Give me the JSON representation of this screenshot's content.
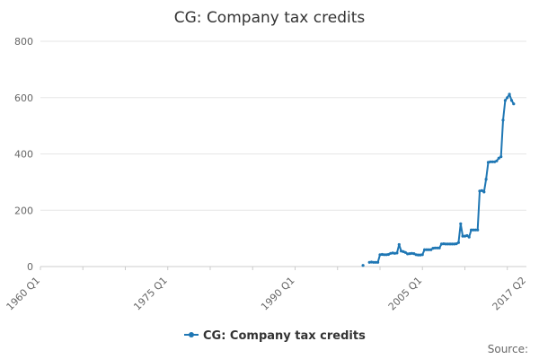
{
  "chart_data": {
    "type": "line",
    "title": "CG: Company tax credits",
    "xlabel": "",
    "ylabel": "",
    "x_tick_labels": [
      "1960 Q1",
      "1975 Q1",
      "1990 Q1",
      "2005 Q1",
      "2017 Q2"
    ],
    "x_tick_values": [
      1960.0,
      1975.0,
      1990.0,
      2005.0,
      2017.25
    ],
    "xlim": [
      1960.0,
      2017.25
    ],
    "ylim": [
      0,
      800
    ],
    "y_ticks": [
      0,
      200,
      400,
      600,
      800
    ],
    "grid": "horizontal",
    "legend": "bottom",
    "source_label": "Source:",
    "series": [
      {
        "name": "CG: Company tax credits",
        "color": "#1f77b4",
        "points": [
          [
            1998.0,
            4
          ],
          [
            1998.75,
            15
          ],
          [
            1999.0,
            16
          ],
          [
            1999.25,
            15
          ],
          [
            1999.5,
            15
          ],
          [
            1999.75,
            15
          ],
          [
            2000.0,
            42
          ],
          [
            2000.25,
            43
          ],
          [
            2000.5,
            42
          ],
          [
            2000.75,
            42
          ],
          [
            2001.0,
            43
          ],
          [
            2001.25,
            47
          ],
          [
            2001.5,
            48
          ],
          [
            2001.75,
            47
          ],
          [
            2002.0,
            48
          ],
          [
            2002.25,
            78
          ],
          [
            2002.5,
            55
          ],
          [
            2002.75,
            53
          ],
          [
            2003.0,
            50
          ],
          [
            2003.25,
            45
          ],
          [
            2003.5,
            46
          ],
          [
            2003.75,
            47
          ],
          [
            2004.0,
            46
          ],
          [
            2004.25,
            42
          ],
          [
            2004.5,
            41
          ],
          [
            2004.75,
            41
          ],
          [
            2005.0,
            42
          ],
          [
            2005.25,
            60
          ],
          [
            2005.5,
            60
          ],
          [
            2005.75,
            60
          ],
          [
            2006.0,
            60
          ],
          [
            2006.25,
            65
          ],
          [
            2006.5,
            66
          ],
          [
            2006.75,
            66
          ],
          [
            2007.0,
            66
          ],
          [
            2007.25,
            80
          ],
          [
            2007.5,
            81
          ],
          [
            2007.75,
            80
          ],
          [
            2008.0,
            80
          ],
          [
            2008.25,
            80
          ],
          [
            2008.5,
            80
          ],
          [
            2008.75,
            80
          ],
          [
            2009.0,
            81
          ],
          [
            2009.25,
            85
          ],
          [
            2009.5,
            152
          ],
          [
            2009.75,
            108
          ],
          [
            2010.0,
            108
          ],
          [
            2010.25,
            110
          ],
          [
            2010.5,
            105
          ],
          [
            2010.75,
            130
          ],
          [
            2011.0,
            130
          ],
          [
            2011.25,
            130
          ],
          [
            2011.5,
            130
          ],
          [
            2011.75,
            268
          ],
          [
            2012.0,
            270
          ],
          [
            2012.25,
            265
          ],
          [
            2012.5,
            310
          ],
          [
            2012.75,
            370
          ],
          [
            2013.0,
            372
          ],
          [
            2013.25,
            372
          ],
          [
            2013.5,
            372
          ],
          [
            2013.75,
            375
          ],
          [
            2014.0,
            385
          ],
          [
            2014.25,
            390
          ],
          [
            2014.5,
            520
          ],
          [
            2014.75,
            590
          ],
          [
            2015.0,
            600
          ],
          [
            2015.25,
            612
          ],
          [
            2015.5,
            590
          ],
          [
            2015.75,
            578
          ]
        ]
      }
    ]
  }
}
